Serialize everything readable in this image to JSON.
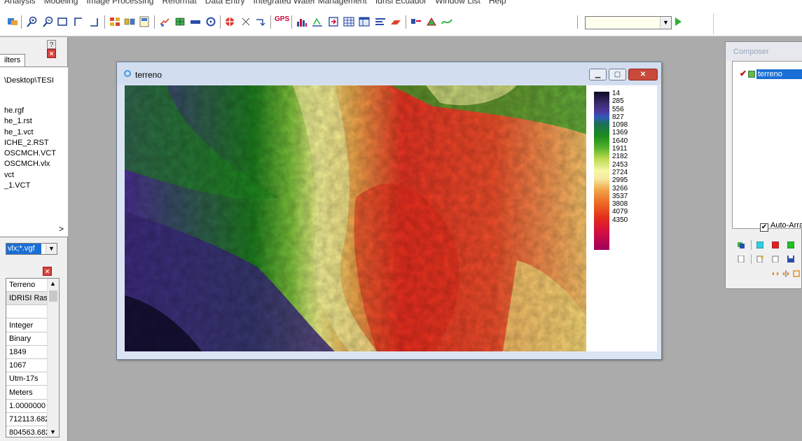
{
  "menu": {
    "items": [
      "Analysis",
      "Modeling",
      "Image Processing",
      "Reformat",
      "Data Entry",
      "Integrated Water Management",
      "Idrisi Ecuador",
      "Window List",
      "Help"
    ]
  },
  "toolbar": {
    "gps_label": "GPS",
    "icons": [
      "layer-composer-icon",
      "zoom-in-icon",
      "zoom-out-icon",
      "zoom-window-icon",
      "corner-icon",
      "corner-icon",
      "group-icon",
      "link-icon",
      "frame-icon",
      "query-icon",
      "grid-icon",
      "measure-icon",
      "circle-icon",
      "target-icon",
      "scissors-icon",
      "arrow-down-icon",
      "gps-icon",
      "histogram-icon",
      "profile-icon",
      "import-icon",
      "table-icon",
      "spreadsheet-icon",
      "list-icon",
      "digitize-icon",
      "vector-icon",
      "polygon-icon",
      "curve-icon"
    ],
    "select_value": "",
    "colors": {
      "play": "#2db12d"
    }
  },
  "left_panel": {
    "filters_tab": "ilters",
    "path": "\\Desktop\\TESI",
    "files": [
      "he.rgf",
      "he_1.rst",
      "he_1.vct",
      "ICHE_2.RST",
      "OSCMCH.VCT",
      "OSCMCH.vlx",
      "vct",
      "_1.VCT"
    ],
    "filter_value": "vlx;*.vgf",
    "meta_rows": [
      "Terreno",
      "IDRISI Ras",
      "",
      "Integer",
      "Binary",
      "1849",
      "1067",
      "Utm-17s",
      "Meters",
      "1.0000000",
      "712113.682",
      "804563.682"
    ]
  },
  "map_window": {
    "title": "terreno",
    "legend": {
      "values": [
        "14",
        "285",
        "556",
        "827",
        "1098",
        "1369",
        "1640",
        "1911",
        "2182",
        "2453",
        "2724",
        "2995",
        "3266",
        "3537",
        "3808",
        "4079",
        "4350"
      ],
      "colors": {
        "low": "#0e0a23",
        "mid": "#f6f7a6",
        "high": "#a0005f"
      }
    }
  },
  "composer": {
    "title": "Composer",
    "layer_name": "terreno",
    "auto_arrange_label": "Auto-Arran",
    "auto_arrange_checked": true
  }
}
